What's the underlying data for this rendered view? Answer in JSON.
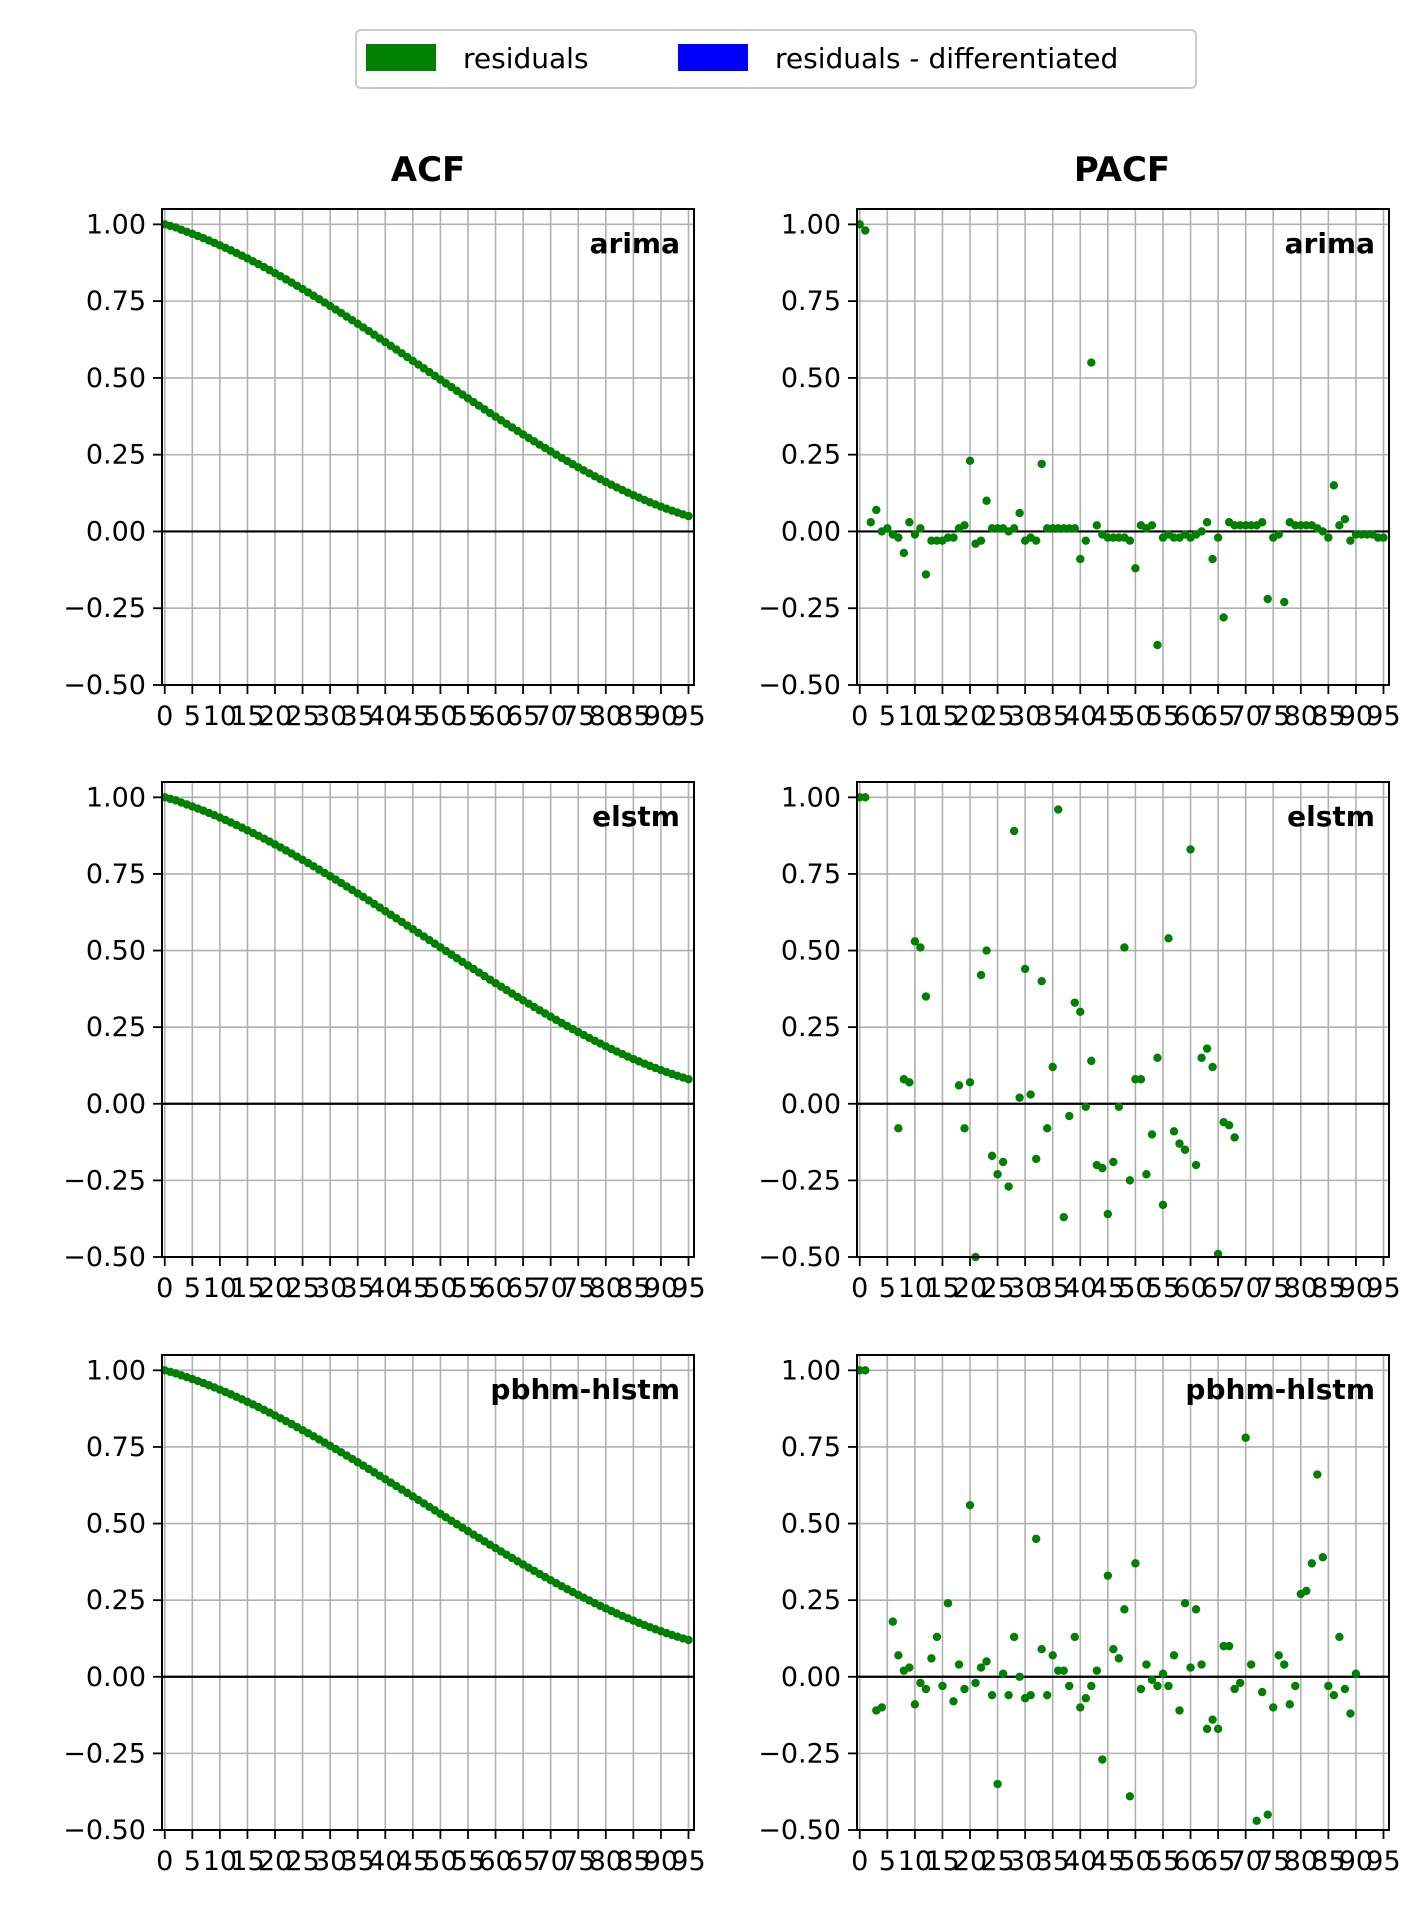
{
  "legend": {
    "items": [
      {
        "label": "residuals",
        "color": "#008000"
      },
      {
        "label": "residuals - differentiated",
        "color": "#0000ff"
      }
    ]
  },
  "columns": {
    "acf_title": "ACF",
    "pacf_title": "PACF"
  },
  "axes": {
    "x_ticks": [
      0,
      5,
      10,
      15,
      20,
      25,
      30,
      35,
      40,
      45,
      50,
      55,
      60,
      65,
      70,
      75,
      80,
      85,
      90,
      95
    ],
    "x_lim": [
      -0.5,
      96
    ],
    "y_ticks": [
      1.0,
      0.75,
      0.5,
      0.25,
      0.0,
      -0.25,
      -0.5
    ],
    "y_tick_labels": [
      "1.00",
      "0.75",
      "0.50",
      "0.25",
      "0.00",
      "−0.25",
      "−0.50"
    ],
    "y_lim": [
      -0.5,
      1.05
    ],
    "grid": true
  },
  "chart_data": [
    {
      "type": "scatter",
      "panel": "arima",
      "column": "ACF",
      "curve": {
        "start": 1.0,
        "end": 0.05,
        "n_lags": 96
      },
      "series": [
        {
          "name": "residuals",
          "color": "#008000"
        }
      ]
    },
    {
      "type": "scatter",
      "panel": "arima",
      "column": "PACF",
      "series": [
        {
          "name": "residuals",
          "color": "#008000",
          "points": [
            [
              0,
              1.0
            ],
            [
              1,
              0.98
            ],
            [
              2,
              0.03
            ],
            [
              3,
              0.07
            ],
            [
              4,
              0.0
            ],
            [
              5,
              0.01
            ],
            [
              6,
              -0.01
            ],
            [
              7,
              -0.02
            ],
            [
              8,
              -0.07
            ],
            [
              9,
              0.03
            ],
            [
              10,
              -0.01
            ],
            [
              11,
              0.01
            ],
            [
              12,
              -0.14
            ],
            [
              13,
              -0.03
            ],
            [
              14,
              -0.03
            ],
            [
              15,
              -0.03
            ],
            [
              16,
              -0.02
            ],
            [
              17,
              -0.02
            ],
            [
              18,
              0.01
            ],
            [
              19,
              0.02
            ],
            [
              20,
              0.23
            ],
            [
              21,
              -0.04
            ],
            [
              22,
              -0.03
            ],
            [
              23,
              0.1
            ],
            [
              24,
              0.01
            ],
            [
              25,
              0.01
            ],
            [
              26,
              0.01
            ],
            [
              27,
              0.0
            ],
            [
              28,
              0.01
            ],
            [
              29,
              0.06
            ],
            [
              30,
              -0.03
            ],
            [
              31,
              -0.02
            ],
            [
              32,
              -0.03
            ],
            [
              33,
              0.22
            ],
            [
              34,
              0.01
            ],
            [
              35,
              0.01
            ],
            [
              36,
              0.01
            ],
            [
              37,
              0.01
            ],
            [
              38,
              0.01
            ],
            [
              39,
              0.01
            ],
            [
              40,
              -0.09
            ],
            [
              41,
              -0.03
            ],
            [
              42,
              0.55
            ],
            [
              43,
              0.02
            ],
            [
              44,
              -0.01
            ],
            [
              45,
              -0.02
            ],
            [
              46,
              -0.02
            ],
            [
              47,
              -0.02
            ],
            [
              48,
              -0.02
            ],
            [
              49,
              -0.03
            ],
            [
              50,
              -0.12
            ],
            [
              51,
              0.02
            ],
            [
              52,
              0.01
            ],
            [
              53,
              0.02
            ],
            [
              54,
              -0.37
            ],
            [
              55,
              -0.02
            ],
            [
              56,
              -0.01
            ],
            [
              57,
              -0.02
            ],
            [
              58,
              -0.02
            ],
            [
              59,
              -0.01
            ],
            [
              60,
              -0.02
            ],
            [
              61,
              -0.01
            ],
            [
              62,
              0.0
            ],
            [
              63,
              0.03
            ],
            [
              64,
              -0.09
            ],
            [
              65,
              -0.02
            ],
            [
              66,
              -0.28
            ],
            [
              67,
              0.03
            ],
            [
              68,
              0.02
            ],
            [
              69,
              0.02
            ],
            [
              70,
              0.02
            ],
            [
              71,
              0.02
            ],
            [
              72,
              0.02
            ],
            [
              73,
              0.03
            ],
            [
              74,
              -0.22
            ],
            [
              75,
              -0.02
            ],
            [
              76,
              -0.01
            ],
            [
              77,
              -0.23
            ],
            [
              78,
              0.03
            ],
            [
              79,
              0.02
            ],
            [
              80,
              0.02
            ],
            [
              81,
              0.02
            ],
            [
              82,
              0.02
            ],
            [
              83,
              0.01
            ],
            [
              84,
              0.0
            ],
            [
              85,
              -0.02
            ],
            [
              86,
              0.15
            ],
            [
              87,
              0.02
            ],
            [
              88,
              0.04
            ],
            [
              89,
              -0.03
            ],
            [
              90,
              -0.01
            ],
            [
              91,
              -0.01
            ],
            [
              92,
              -0.01
            ],
            [
              93,
              -0.01
            ],
            [
              94,
              -0.02
            ],
            [
              95,
              -0.02
            ]
          ]
        }
      ]
    },
    {
      "type": "scatter",
      "panel": "elstm",
      "column": "ACF",
      "curve": {
        "start": 1.0,
        "end": 0.08,
        "n_lags": 96
      },
      "series": [
        {
          "name": "residuals",
          "color": "#008000"
        }
      ]
    },
    {
      "type": "scatter",
      "panel": "elstm",
      "column": "PACF",
      "series": [
        {
          "name": "residuals",
          "color": "#008000",
          "points": [
            [
              0,
              1.0
            ],
            [
              1,
              1.0
            ],
            [
              7,
              -0.08
            ],
            [
              8,
              0.08
            ],
            [
              9,
              0.07
            ],
            [
              10,
              0.53
            ],
            [
              11,
              0.51
            ],
            [
              12,
              0.35
            ],
            [
              18,
              0.06
            ],
            [
              19,
              -0.08
            ],
            [
              20,
              0.07
            ],
            [
              21,
              -0.5
            ],
            [
              22,
              0.42
            ],
            [
              23,
              0.5
            ],
            [
              24,
              -0.17
            ],
            [
              25,
              -0.23
            ],
            [
              26,
              -0.19
            ],
            [
              27,
              -0.27
            ],
            [
              28,
              0.89
            ],
            [
              29,
              0.02
            ],
            [
              30,
              0.44
            ],
            [
              31,
              0.03
            ],
            [
              32,
              -0.18
            ],
            [
              33,
              0.4
            ],
            [
              34,
              -0.08
            ],
            [
              35,
              0.12
            ],
            [
              36,
              0.96
            ],
            [
              37,
              -0.37
            ],
            [
              38,
              -0.04
            ],
            [
              39,
              0.33
            ],
            [
              40,
              0.3
            ],
            [
              41,
              -0.01
            ],
            [
              42,
              0.14
            ],
            [
              43,
              -0.2
            ],
            [
              44,
              -0.21
            ],
            [
              45,
              -0.36
            ],
            [
              46,
              -0.19
            ],
            [
              47,
              -0.01
            ],
            [
              48,
              0.51
            ],
            [
              49,
              -0.25
            ],
            [
              50,
              0.08
            ],
            [
              51,
              0.08
            ],
            [
              52,
              -0.23
            ],
            [
              53,
              -0.1
            ],
            [
              54,
              0.15
            ],
            [
              55,
              -0.33
            ],
            [
              56,
              0.54
            ],
            [
              57,
              -0.09
            ],
            [
              58,
              -0.13
            ],
            [
              59,
              -0.15
            ],
            [
              60,
              0.83
            ],
            [
              61,
              -0.2
            ],
            [
              62,
              0.15
            ],
            [
              63,
              0.18
            ],
            [
              64,
              0.12
            ],
            [
              65,
              -0.49
            ],
            [
              66,
              -0.06
            ],
            [
              67,
              -0.07
            ],
            [
              68,
              -0.11
            ]
          ]
        }
      ]
    },
    {
      "type": "scatter",
      "panel": "pbhm-hlstm",
      "column": "ACF",
      "curve": {
        "start": 1.0,
        "end": 0.12,
        "n_lags": 96
      },
      "series": [
        {
          "name": "residuals",
          "color": "#008000"
        }
      ]
    },
    {
      "type": "scatter",
      "panel": "pbhm-hlstm",
      "column": "PACF",
      "series": [
        {
          "name": "residuals",
          "color": "#008000",
          "points": [
            [
              0,
              1.0
            ],
            [
              1,
              1.0
            ],
            [
              3,
              -0.11
            ],
            [
              4,
              -0.1
            ],
            [
              6,
              0.18
            ],
            [
              7,
              0.07
            ],
            [
              8,
              0.02
            ],
            [
              9,
              0.03
            ],
            [
              10,
              -0.09
            ],
            [
              11,
              -0.02
            ],
            [
              12,
              -0.04
            ],
            [
              13,
              0.06
            ],
            [
              14,
              0.13
            ],
            [
              15,
              -0.03
            ],
            [
              16,
              0.24
            ],
            [
              17,
              -0.08
            ],
            [
              18,
              0.04
            ],
            [
              19,
              -0.04
            ],
            [
              20,
              0.56
            ],
            [
              21,
              -0.02
            ],
            [
              22,
              0.03
            ],
            [
              23,
              0.05
            ],
            [
              24,
              -0.06
            ],
            [
              25,
              -0.35
            ],
            [
              26,
              0.01
            ],
            [
              27,
              -0.06
            ],
            [
              28,
              0.13
            ],
            [
              29,
              0.0
            ],
            [
              30,
              -0.07
            ],
            [
              31,
              -0.06
            ],
            [
              32,
              0.45
            ],
            [
              33,
              0.09
            ],
            [
              34,
              -0.06
            ],
            [
              35,
              0.07
            ],
            [
              36,
              0.02
            ],
            [
              37,
              0.02
            ],
            [
              38,
              -0.03
            ],
            [
              39,
              0.13
            ],
            [
              40,
              -0.1
            ],
            [
              41,
              -0.07
            ],
            [
              42,
              -0.03
            ],
            [
              43,
              0.02
            ],
            [
              44,
              -0.27
            ],
            [
              45,
              0.33
            ],
            [
              46,
              0.09
            ],
            [
              47,
              0.06
            ],
            [
              48,
              0.22
            ],
            [
              49,
              -0.39
            ],
            [
              50,
              0.37
            ],
            [
              51,
              -0.04
            ],
            [
              52,
              0.04
            ],
            [
              53,
              -0.01
            ],
            [
              54,
              -0.03
            ],
            [
              55,
              0.01
            ],
            [
              56,
              -0.03
            ],
            [
              57,
              0.07
            ],
            [
              58,
              -0.11
            ],
            [
              59,
              0.24
            ],
            [
              60,
              0.03
            ],
            [
              61,
              0.22
            ],
            [
              62,
              0.04
            ],
            [
              63,
              -0.17
            ],
            [
              64,
              -0.14
            ],
            [
              65,
              -0.17
            ],
            [
              66,
              0.1
            ],
            [
              67,
              0.1
            ],
            [
              68,
              -0.04
            ],
            [
              69,
              -0.02
            ],
            [
              70,
              0.78
            ],
            [
              71,
              0.04
            ],
            [
              72,
              -0.47
            ],
            [
              73,
              -0.05
            ],
            [
              74,
              -0.45
            ],
            [
              75,
              -0.1
            ],
            [
              76,
              0.07
            ],
            [
              77,
              0.04
            ],
            [
              78,
              -0.09
            ],
            [
              79,
              -0.03
            ],
            [
              80,
              0.27
            ],
            [
              81,
              0.28
            ],
            [
              82,
              0.37
            ],
            [
              83,
              0.66
            ],
            [
              84,
              0.39
            ],
            [
              85,
              -0.03
            ],
            [
              86,
              -0.06
            ],
            [
              87,
              0.13
            ],
            [
              88,
              -0.04
            ],
            [
              89,
              -0.12
            ],
            [
              90,
              0.01
            ]
          ]
        }
      ]
    }
  ]
}
